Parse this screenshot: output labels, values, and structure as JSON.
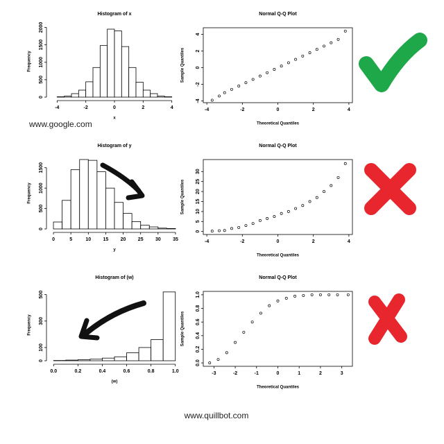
{
  "chart_data": [
    {
      "type": "histogram",
      "title": "Histogram of x",
      "xlabel": "x",
      "ylabel": "Frequency",
      "bins": [
        -4.0,
        -3.5,
        -3.0,
        -2.5,
        -2.0,
        -1.5,
        -1.0,
        -0.5,
        0.0,
        0.5,
        1.0,
        1.5,
        2.0,
        2.5,
        3.0,
        3.5,
        4.0
      ],
      "counts": [
        10,
        30,
        100,
        200,
        440,
        850,
        1480,
        1950,
        1900,
        1450,
        850,
        430,
        200,
        100,
        30,
        10
      ],
      "xlim": [
        -4.5,
        4.5
      ],
      "ylim": [
        0,
        2050
      ],
      "xticks": [
        -4,
        -2,
        0,
        2,
        4
      ],
      "yticks": [
        0,
        500,
        1000,
        1500,
        2000
      ]
    },
    {
      "type": "scatter",
      "title": "Normal Q-Q Plot",
      "xlabel": "Theoretical Quantiles",
      "ylabel": "Sample Quantiles",
      "x": [
        -3.7,
        -3.3,
        -3.0,
        -2.6,
        -2.2,
        -1.8,
        -1.4,
        -1.0,
        -0.6,
        -0.2,
        0.2,
        0.6,
        1.0,
        1.4,
        1.8,
        2.2,
        2.6,
        3.0,
        3.4,
        3.8
      ],
      "y": [
        -3.9,
        -3.4,
        -3.0,
        -2.6,
        -2.2,
        -1.8,
        -1.4,
        -1.0,
        -0.6,
        -0.2,
        0.2,
        0.6,
        1.0,
        1.4,
        1.8,
        2.2,
        2.6,
        3.0,
        3.4,
        4.4
      ],
      "xlim": [
        -4.2,
        4.2
      ],
      "ylim": [
        -4.2,
        4.8
      ],
      "xticks": [
        -4,
        -2,
        0,
        2,
        4
      ],
      "yticks": [
        -4,
        -2,
        0,
        2,
        4
      ]
    },
    {
      "type": "histogram",
      "title": "Histogram of y",
      "xlabel": "y",
      "ylabel": "Frequency",
      "bins": [
        0,
        2.5,
        5,
        7.5,
        10,
        12.5,
        15,
        17.5,
        20,
        22.5,
        25,
        27.5,
        30,
        32.5,
        35
      ],
      "counts": [
        170,
        700,
        1450,
        1700,
        1680,
        1400,
        1000,
        650,
        380,
        180,
        90,
        50,
        20,
        10
      ],
      "xlim": [
        -1,
        36
      ],
      "ylim": [
        0,
        1750
      ],
      "xticks": [
        0,
        5,
        10,
        15,
        20,
        25,
        30,
        35
      ],
      "yticks": [
        0,
        500,
        1000,
        1500
      ]
    },
    {
      "type": "scatter",
      "title": "Normal Q-Q Plot",
      "xlabel": "Theoretical Quantiles",
      "ylabel": "Sample Quantiles",
      "x": [
        -3.7,
        -3.3,
        -3.0,
        -2.6,
        -2.2,
        -1.8,
        -1.4,
        -1.0,
        -0.6,
        -0.2,
        0.2,
        0.6,
        1.0,
        1.4,
        1.8,
        2.2,
        2.6,
        3.0,
        3.4,
        3.8
      ],
      "y": [
        0.2,
        0.4,
        0.5,
        1.5,
        2,
        3,
        4,
        5.5,
        6.5,
        7.5,
        9,
        10,
        11.5,
        13,
        15,
        17,
        20,
        23,
        27,
        34
      ],
      "xlim": [
        -4.2,
        4.2
      ],
      "ylim": [
        -1.5,
        36
      ],
      "xticks": [
        -4,
        -2,
        0,
        2,
        4
      ],
      "yticks": [
        0,
        5,
        10,
        15,
        20,
        25,
        30
      ]
    },
    {
      "type": "histogram",
      "title": "Histogram of (w)",
      "xlabel": "(w)",
      "ylabel": "Frequency",
      "bins": [
        0.0,
        0.1,
        0.2,
        0.3,
        0.4,
        0.5,
        0.6,
        0.7,
        0.8,
        0.9,
        1.0
      ],
      "counts": [
        2,
        5,
        8,
        12,
        20,
        30,
        60,
        100,
        160,
        520
      ],
      "xlim": [
        -0.03,
        1.03
      ],
      "ylim": [
        0,
        540
      ],
      "xticks": [
        {
          "value": 0,
          "label": "0.0"
        },
        0.2,
        0.4,
        0.6,
        0.8,
        {
          "value": 1,
          "label": "1.0"
        }
      ],
      "yticks": [
        0,
        100,
        300,
        500
      ]
    },
    {
      "type": "scatter",
      "title": "Normal Q-Q Plot",
      "xlabel": "Theoretical Quantiles",
      "ylabel": "Sample Quantiles",
      "x": [
        -3.2,
        -2.8,
        -2.4,
        -2.0,
        -1.6,
        -1.2,
        -0.8,
        -0.4,
        0.0,
        0.4,
        0.8,
        1.2,
        1.6,
        2.0,
        2.4,
        2.8,
        3.3
      ],
      "y": [
        0.0,
        0.05,
        0.15,
        0.3,
        0.45,
        0.6,
        0.73,
        0.84,
        0.91,
        0.95,
        0.98,
        0.99,
        1,
        1,
        1,
        1,
        1
      ],
      "xlim": [
        -3.5,
        3.5
      ],
      "ylim": [
        -0.05,
        1.05
      ],
      "xticks": [
        -3,
        -2,
        -1,
        0,
        1,
        2,
        3
      ],
      "yticks": [
        {
          "value": 0,
          "label": "0.0"
        },
        0.2,
        0.4,
        0.6,
        0.8,
        {
          "value": 1,
          "label": "1.0"
        }
      ]
    }
  ],
  "watermarks": [
    "www.google.com",
    "www.quillbot.com"
  ]
}
